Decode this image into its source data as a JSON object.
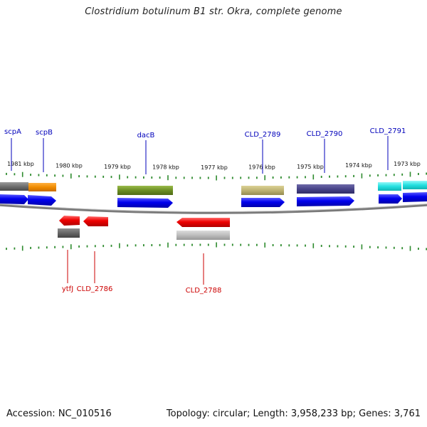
{
  "title": "Clostridium botulinum B1 str. Okra, complete genome",
  "footer": {
    "accession": "Accession: NC_010516",
    "topology": "Topology: circular; Length: 3,958,233 bp; Genes: 3,761"
  },
  "colors": {
    "forward_label": "#0000bb",
    "reverse_label": "#cc0000",
    "tick": "#2e8b2e",
    "backbone": "#7a7a7a",
    "cds_forward": "#0000ee",
    "cds_reverse": "#ee0000"
  },
  "scale": {
    "kbp_labels": [
      "1981 kbp",
      "1980 kbp",
      "1979 kbp",
      "1978 kbp",
      "1977 kbp",
      "1976 kbp",
      "1975 kbp",
      "1974 kbp",
      "1973 kbp"
    ]
  },
  "genes": {
    "forward": [
      "scpA",
      "scpB",
      "dacB",
      "CLD_2789",
      "CLD_2790",
      "CLD_2791"
    ],
    "reverse": [
      "ytfJ",
      "CLD_2786",
      "CLD_2788"
    ]
  }
}
